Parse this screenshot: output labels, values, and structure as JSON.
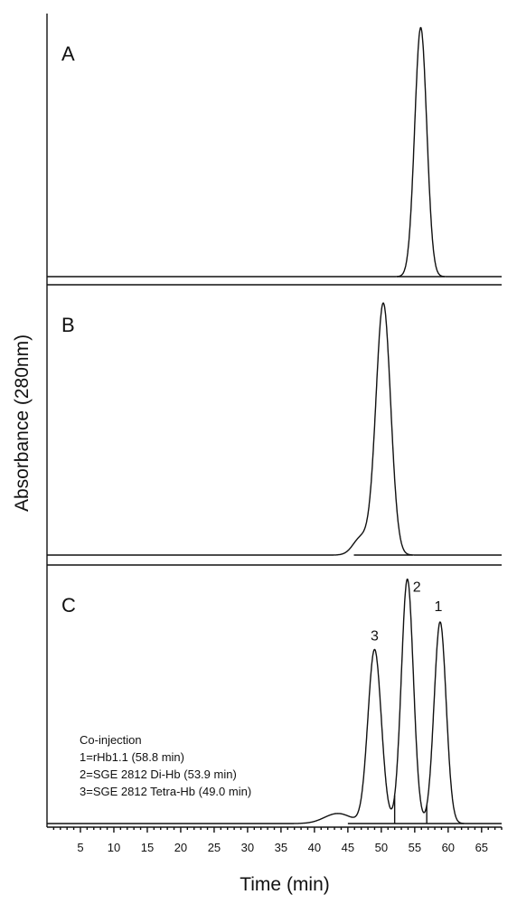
{
  "chart_data": {
    "type": "line",
    "xlabel": "Time (min)",
    "ylabel": "Absorbance (280nm)",
    "xlim": [
      0,
      68
    ],
    "x_ticks": [
      5,
      10,
      15,
      20,
      25,
      30,
      35,
      40,
      45,
      50,
      55,
      60,
      65
    ],
    "panels": [
      {
        "label": "A",
        "baseline": 0.02,
        "peaks": [
          {
            "center": 55.9,
            "height": 1.0,
            "sigma": 0.9
          }
        ]
      },
      {
        "label": "B",
        "baseline": 0.02,
        "peaks": [
          {
            "center": 50.3,
            "height": 1.0,
            "sigma": 1.1
          },
          {
            "center": 47.0,
            "height": 0.07,
            "sigma": 1.2
          }
        ]
      },
      {
        "label": "C",
        "baseline": 0.02,
        "peaks": [
          {
            "id": "3",
            "center": 49.0,
            "height": 0.69,
            "sigma": 1.0
          },
          {
            "id": "2",
            "center": 53.9,
            "height": 0.97,
            "sigma": 0.9
          },
          {
            "id": "1",
            "center": 58.8,
            "height": 0.8,
            "sigma": 0.9
          },
          {
            "center": 43.5,
            "height": 0.04,
            "sigma": 2.0
          }
        ],
        "valley_markers": [
          52.0,
          56.8
        ]
      }
    ],
    "legend": [
      "Co-injection",
      "1=rHb1.1 (58.8 min)",
      "2=SGE 2812 Di-Hb (53.9 min)",
      "3=SGE 2812 Tetra-Hb (49.0 min)"
    ]
  }
}
